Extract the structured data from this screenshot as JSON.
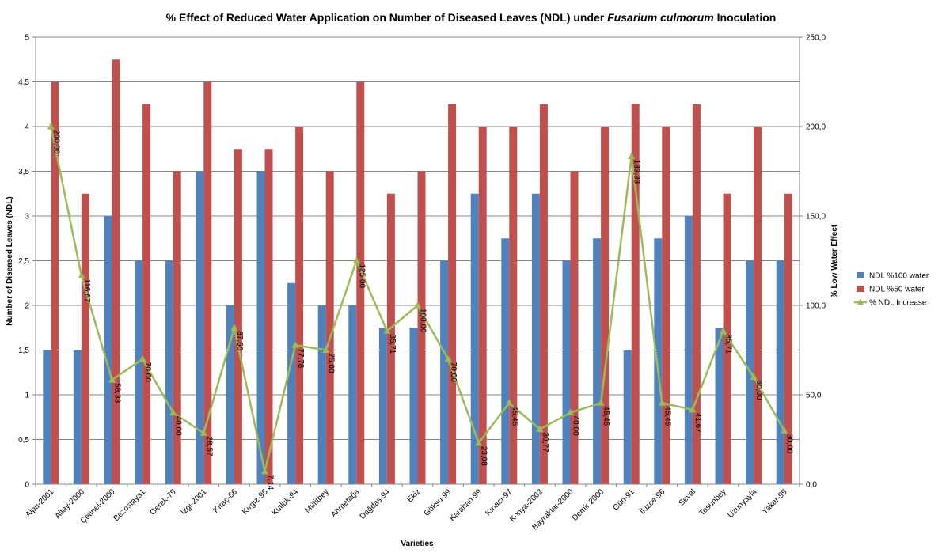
{
  "chart_data": {
    "type": "bar",
    "title_parts": [
      {
        "text": "% Effect of Reduced Water Application on Number of Diseased Leaves (NDL) under ",
        "italic": false
      },
      {
        "text": "Fusarium culmorum",
        "italic": true
      },
      {
        "text": " Inoculation",
        "italic": false
      }
    ],
    "xlabel": "Varieties",
    "ylabel_left": "Number of Diseased Leaves (NDL)",
    "ylabel_right": "% Low Water Effect",
    "ylim_left": [
      0,
      5
    ],
    "ylim_right": [
      0,
      250
    ],
    "yticks_left": [
      "0",
      "0,5",
      "1",
      "1,5",
      "2",
      "2,5",
      "3",
      "3,5",
      "4",
      "4,5",
      "5"
    ],
    "yticks_right": [
      "0,0",
      "50,0",
      "100,0",
      "150,0",
      "200,0",
      "250,0"
    ],
    "grid": true,
    "legend_position": "right",
    "categories": [
      "Alpu-2001",
      "Altay-2000",
      "Çetinel-2000",
      "Bezostaya1",
      "Gerek-79",
      "İzgi-2001",
      "Kıraç-66",
      "Kırgız-95",
      "Kutluk-94",
      "Müfitbey",
      "Ahmetağa",
      "Dağdaş-94",
      "Ekiz",
      "Göksu-99",
      "Karahan-99",
      "Kınacı-97",
      "Konya-2002",
      "Bayraktar-2000",
      "Demir 2000",
      "Gün-91",
      "İkizce-96",
      "Seval",
      "Tosunbey",
      "Uzunyayla",
      "Yakar-99"
    ],
    "series": [
      {
        "name": "NDL %100 water",
        "type": "bar",
        "axis": "left",
        "color": "#4F81BD",
        "values": [
          1.5,
          1.5,
          3.0,
          2.5,
          2.5,
          3.5,
          2.0,
          3.5,
          2.25,
          2.0,
          2.0,
          1.75,
          1.75,
          2.5,
          3.25,
          2.75,
          3.25,
          2.5,
          2.75,
          1.5,
          2.75,
          3.0,
          1.75,
          2.5,
          2.5
        ]
      },
      {
        "name": "NDL %50 water",
        "type": "bar",
        "axis": "left",
        "color": "#C0504D",
        "values": [
          4.5,
          3.25,
          4.75,
          4.25,
          3.5,
          4.5,
          3.75,
          3.75,
          4.0,
          3.5,
          4.5,
          3.25,
          3.5,
          4.25,
          4.0,
          4.0,
          4.25,
          3.5,
          4.0,
          4.25,
          4.0,
          4.25,
          3.25,
          4.0,
          3.25
        ]
      },
      {
        "name": "% NDL Increase",
        "type": "line",
        "axis": "right",
        "color": "#9BBB59",
        "values": [
          200.0,
          116.67,
          58.33,
          70.0,
          40.0,
          28.57,
          87.5,
          7.14,
          77.78,
          75.0,
          125.0,
          85.71,
          100.0,
          70.0,
          23.08,
          45.45,
          30.77,
          40.0,
          45.45,
          183.33,
          45.45,
          41.67,
          85.71,
          60.0,
          30.0
        ],
        "labels": [
          "200,00",
          "116,67",
          "58,33",
          "70,00",
          "40,00",
          "28,57",
          "87,50",
          "7,14",
          "77,78",
          "75,00",
          "125,00",
          "85,71",
          "100,00",
          "70,00",
          "23,08",
          "45,45",
          "30,77",
          "40,00",
          "45,45",
          "183,33",
          "45,45",
          "41,67",
          "85,71",
          "60,00",
          "30,00"
        ]
      }
    ]
  }
}
